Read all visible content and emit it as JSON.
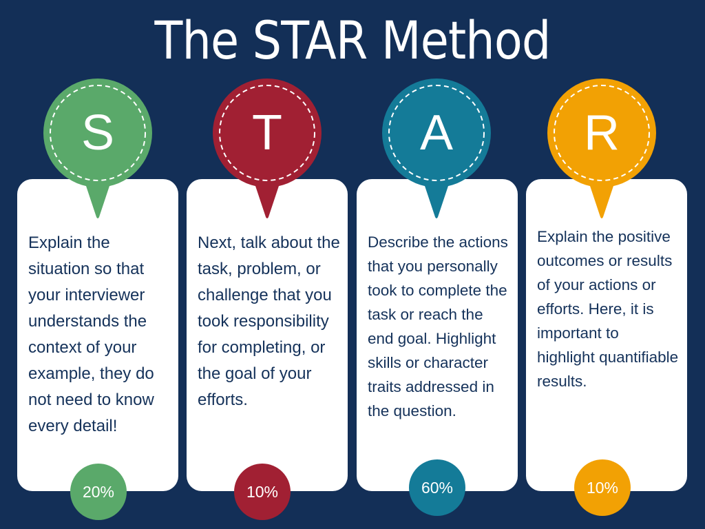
{
  "title": "The STAR Method",
  "steps": [
    {
      "letter": "S",
      "color": "#5aa96a",
      "text": "Explain the situation so that your interviewer understands the context of your example, they do not need to know every detail!",
      "percent": "20%"
    },
    {
      "letter": "T",
      "color": "#a12033",
      "text": "Next, talk about the task, problem, or challenge that you took responsibility for completing, or the goal of your efforts.",
      "percent": "10%"
    },
    {
      "letter": "A",
      "color": "#147b98",
      "text": "Describe the actions that you personally took to complete the task or reach the end goal. Highlight skills or character traits addressed in the question.",
      "percent": "60%"
    },
    {
      "letter": "R",
      "color": "#f2a104",
      "text": "Explain the positive outcomes or results of your actions or efforts. Here, it is important to highlight quantifiable results.",
      "percent": "10%"
    }
  ]
}
